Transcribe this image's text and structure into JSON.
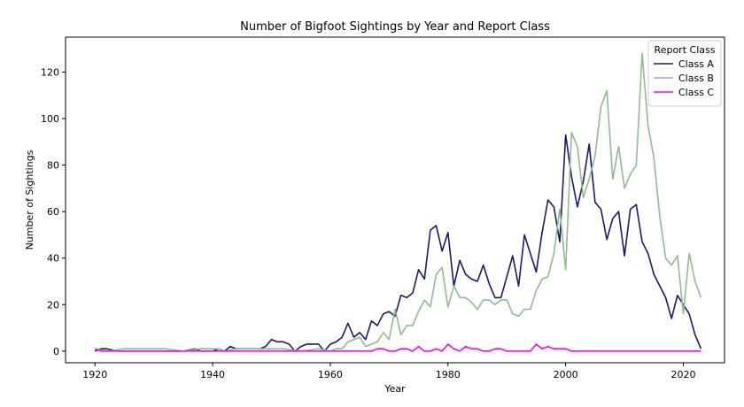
{
  "chart_data": {
    "type": "line",
    "title": "Number of Bigfoot Sightings by Year and Report Class",
    "xlabel": "Year",
    "ylabel": "Number of Sightings",
    "xlim": [
      1915,
      2027
    ],
    "ylim": [
      -5,
      135
    ],
    "xticks": [
      1920,
      1940,
      1960,
      1980,
      2000,
      2020
    ],
    "yticks": [
      0,
      20,
      40,
      60,
      80,
      100,
      120
    ],
    "grid": false,
    "legend": {
      "title": "Report Class",
      "placement": "top-right"
    },
    "series": [
      {
        "name": "Class A",
        "color": "#191970",
        "x": [
          1920,
          1921,
          1922,
          1924,
          1925,
          1930,
          1935,
          1937,
          1938,
          1940,
          1941,
          1942,
          1943,
          1944,
          1945,
          1948,
          1949,
          1950,
          1951,
          1952,
          1953,
          1954,
          1955,
          1956,
          1957,
          1958,
          1959,
          1960,
          1961,
          1962,
          1963,
          1964,
          1965,
          1966,
          1967,
          1968,
          1969,
          1970,
          1971,
          1972,
          1973,
          1974,
          1975,
          1976,
          1977,
          1978,
          1979,
          1980,
          1981,
          1982,
          1983,
          1984,
          1985,
          1986,
          1987,
          1988,
          1989,
          1990,
          1991,
          1992,
          1993,
          1994,
          1995,
          1996,
          1997,
          1998,
          1999,
          2000,
          2001,
          2002,
          2003,
          2004,
          2005,
          2006,
          2007,
          2008,
          2009,
          2010,
          2011,
          2012,
          2013,
          2014,
          2015,
          2016,
          2017,
          2018,
          2019,
          2020,
          2021,
          2022,
          2023
        ],
        "values": [
          0,
          1,
          1,
          0,
          0,
          0,
          0,
          1,
          0,
          0,
          1,
          0,
          2,
          1,
          1,
          1,
          2,
          5,
          4,
          4,
          3,
          0,
          2,
          3,
          3,
          3,
          0,
          3,
          4,
          6,
          12,
          6,
          8,
          5,
          13,
          11,
          16,
          17,
          15,
          24,
          23,
          25,
          35,
          31,
          52,
          54,
          43,
          51,
          28,
          39,
          33,
          31,
          30,
          37,
          29,
          23,
          23,
          32,
          41,
          28,
          50,
          42,
          34,
          51,
          65,
          62,
          47,
          93,
          75,
          62,
          73,
          89,
          64,
          61,
          48,
          57,
          60,
          41,
          61,
          63,
          47,
          42,
          33,
          28,
          23,
          14,
          24,
          20,
          16,
          7,
          1
        ]
      },
      {
        "name": "Class B",
        "color": "#8fbc8f",
        "x": [
          1920,
          1922,
          1925,
          1930,
          1932,
          1935,
          1938,
          1940,
          1941,
          1942,
          1944,
          1948,
          1950,
          1952,
          1955,
          1958,
          1960,
          1961,
          1962,
          1963,
          1964,
          1965,
          1966,
          1967,
          1968,
          1969,
          1970,
          1971,
          1972,
          1973,
          1974,
          1975,
          1976,
          1977,
          1978,
          1979,
          1980,
          1981,
          1982,
          1983,
          1984,
          1985,
          1986,
          1987,
          1988,
          1989,
          1990,
          1991,
          1992,
          1993,
          1994,
          1995,
          1996,
          1997,
          1998,
          1999,
          2000,
          2001,
          2002,
          2003,
          2004,
          2005,
          2006,
          2007,
          2008,
          2009,
          2010,
          2011,
          2012,
          2013,
          2014,
          2015,
          2016,
          2017,
          2018,
          2019,
          2020,
          2021,
          2022,
          2023
        ],
        "values": [
          1,
          0,
          1,
          1,
          1,
          0,
          1,
          1,
          1,
          0,
          1,
          1,
          1,
          1,
          0,
          1,
          0,
          1,
          1,
          4,
          5,
          6,
          2,
          3,
          4,
          8,
          5,
          18,
          7,
          11,
          11,
          17,
          22,
          19,
          33,
          36,
          19,
          28,
          23,
          23,
          21,
          18,
          22,
          22,
          20,
          22,
          22,
          16,
          15,
          18,
          18,
          26,
          31,
          32,
          42,
          61,
          35,
          94,
          88,
          66,
          74,
          84,
          105,
          112,
          74,
          88,
          70,
          76,
          80,
          128,
          97,
          83,
          58,
          40,
          37,
          41,
          16,
          42,
          30,
          23
        ]
      },
      {
        "name": "Class C",
        "color": "#ff00ff",
        "x": [
          1920,
          1921,
          1925,
          1930,
          1935,
          1940,
          1945,
          1950,
          1955,
          1960,
          1965,
          1966,
          1967,
          1968,
          1969,
          1970,
          1971,
          1972,
          1973,
          1974,
          1975,
          1976,
          1977,
          1978,
          1979,
          1980,
          1981,
          1982,
          1983,
          1984,
          1985,
          1986,
          1987,
          1988,
          1989,
          1990,
          1991,
          1992,
          1993,
          1994,
          1995,
          1996,
          1997,
          1998,
          1999,
          2000,
          2001,
          2002,
          2003,
          2005,
          2010,
          2015,
          2020,
          2023
        ],
        "values": [
          1,
          0,
          0,
          0,
          0,
          0,
          0,
          0,
          0,
          0,
          0,
          0,
          0,
          1,
          1,
          0,
          0,
          1,
          1,
          0,
          2,
          0,
          0,
          1,
          0,
          3,
          1,
          0,
          2,
          1,
          1,
          0,
          0,
          1,
          1,
          0,
          0,
          0,
          0,
          0,
          3,
          1,
          2,
          1,
          1,
          1,
          0,
          0,
          0,
          0,
          0,
          0,
          0,
          0
        ]
      }
    ]
  }
}
